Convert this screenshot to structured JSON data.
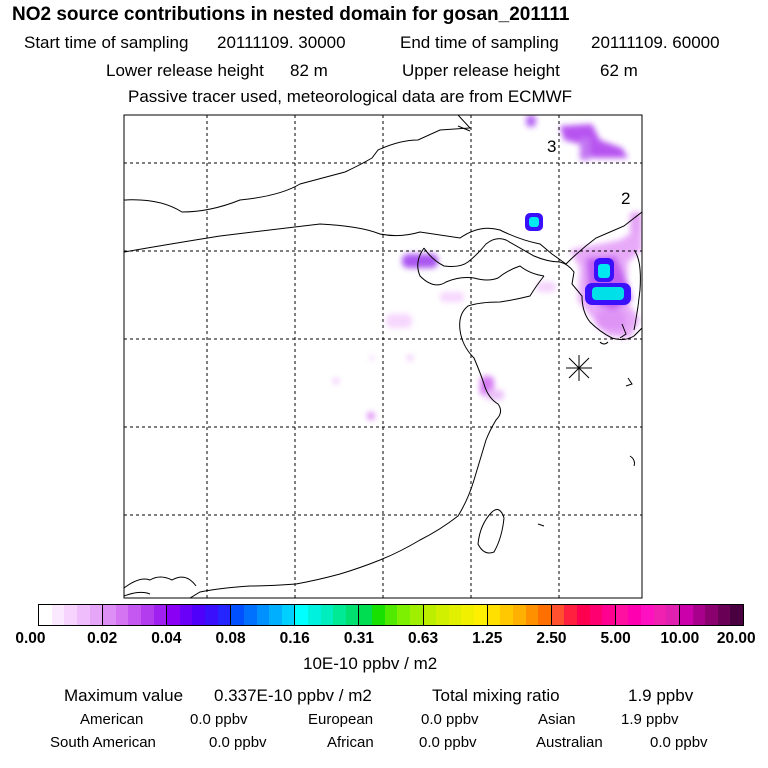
{
  "header": {
    "title": "NO2 source contributions in nested domain for gosan_201111",
    "start_label": "Start time of sampling",
    "start_value": "20111109. 30000",
    "end_label": "End time of sampling",
    "end_value": "20111109. 60000",
    "lower_label": "Lower release height",
    "lower_value": "82 m",
    "upper_label": "Upper release height",
    "upper_value": "62 m",
    "note": "Passive tracer used, meteorological data are from ECMWF"
  },
  "map": {
    "region_labels": [
      "3",
      "2"
    ],
    "receptor": "gosan",
    "receptor_icon": "asterisk-star-icon"
  },
  "colorbar": {
    "ticks": [
      "0.00",
      "0.02",
      "0.04",
      "0.08",
      "0.16",
      "0.31",
      "0.63",
      "1.25",
      "2.50",
      "5.00",
      "10.00",
      "20.00"
    ],
    "unit": "10E-10 ppbv / m2",
    "segments": [
      [
        "#ffffff",
        "#fbeaff",
        "#f6d4fd",
        "#efbdfb",
        "#e6a6f8"
      ],
      [
        "#de8ff5",
        "#d474f3",
        "#c558f1",
        "#b43cef",
        "#a020ef"
      ],
      [
        "#8a00f5",
        "#6a00f7",
        "#4f00fa",
        "#3a10fc",
        "#2525ff"
      ],
      [
        "#0050ff",
        "#0070ff",
        "#0090ff",
        "#00b0ff",
        "#00d0ff"
      ],
      [
        "#00ffff",
        "#00f2df",
        "#00eebd",
        "#00ea96",
        "#00e070"
      ],
      [
        "#00dd50",
        "#18e000",
        "#50ea00",
        "#7cf000",
        "#a0ee00"
      ],
      [
        "#bcee00",
        "#d0f000",
        "#e0f000",
        "#f0f000",
        "#ffef00"
      ],
      [
        "#ffe000",
        "#ffc800",
        "#ffb000",
        "#ff9000",
        "#ff7000"
      ],
      [
        "#ff5030",
        "#ff2040",
        "#ff0050",
        "#ff0070",
        "#ff0090"
      ],
      [
        "#ff10a0",
        "#ff00b0",
        "#ff10c0",
        "#f020b0",
        "#e020b0"
      ],
      [
        "#cc00aa",
        "#a8008c",
        "#8a006f",
        "#6a0055",
        "#4a0040"
      ]
    ]
  },
  "stats": {
    "max_label": "Maximum value",
    "max_value": "0.337E-10 ppbv / m2",
    "total_label": "Total mixing ratio",
    "total_value": "1.9 ppbv",
    "american_label": "American",
    "american_value": "0.0 ppbv",
    "european_label": "European",
    "european_value": "0.0 ppbv",
    "asian_label": "Asian",
    "asian_value": "1.9 ppbv",
    "south_american_label": "South American",
    "south_american_value": "0.0 ppbv",
    "african_label": "African",
    "african_value": "0.0 ppbv",
    "australian_label": "Australian",
    "australian_value": "0.0 ppbv"
  }
}
